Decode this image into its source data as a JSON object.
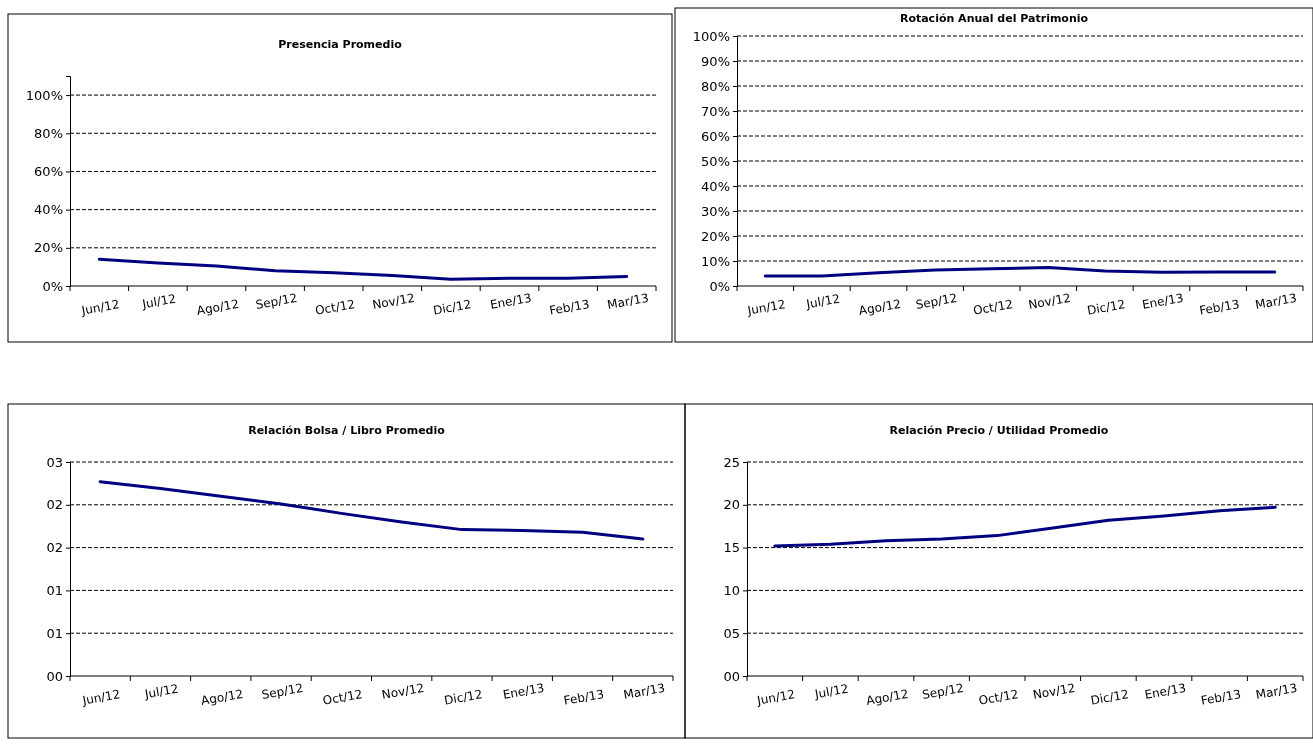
{
  "chart_data": [
    {
      "type": "line",
      "title": "Presencia Promedio",
      "categories": [
        "Jun/12",
        "Jul/12",
        "Ago/12",
        "Sep/12",
        "Oct/12",
        "Nov/12",
        "Dic/12",
        "Ene/13",
        "Feb/13",
        "Mar/13"
      ],
      "values": [
        14,
        12,
        10.5,
        8,
        7,
        5.5,
        3.5,
        4,
        4,
        5
      ],
      "color": "#000080",
      "ylim": [
        0,
        110
      ],
      "yticks": [
        {
          "value": 0,
          "label": "0%"
        },
        {
          "value": 20,
          "label": "20%"
        },
        {
          "value": 40,
          "label": "40%"
        },
        {
          "value": 60,
          "label": "60%"
        },
        {
          "value": 80,
          "label": "80%"
        },
        {
          "value": 100,
          "label": "100%"
        }
      ],
      "grid": "y",
      "line_style": "solid"
    },
    {
      "type": "line",
      "title": "Rotación Anual del Patrimonio",
      "categories": [
        "Jun/12",
        "Jul/12",
        "Ago/12",
        "Sep/12",
        "Oct/12",
        "Nov/12",
        "Dic/12",
        "Ene/13",
        "Feb/13",
        "Mar/13"
      ],
      "values": [
        4,
        4,
        5.3,
        6.4,
        6.9,
        7.4,
        6,
        5.5,
        5.6,
        5.6
      ],
      "color": "#000080",
      "ylim": [
        0,
        100
      ],
      "yticks": [
        {
          "value": 0,
          "label": "0%"
        },
        {
          "value": 10,
          "label": "10%"
        },
        {
          "value": 20,
          "label": "20%"
        },
        {
          "value": 30,
          "label": "30%"
        },
        {
          "value": 40,
          "label": "40%"
        },
        {
          "value": 50,
          "label": "50%"
        },
        {
          "value": 60,
          "label": "60%"
        },
        {
          "value": 70,
          "label": "70%"
        },
        {
          "value": 80,
          "label": "80%"
        },
        {
          "value": 90,
          "label": "90%"
        },
        {
          "value": 100,
          "label": "100%"
        }
      ],
      "grid": "y",
      "line_style": "solid"
    },
    {
      "type": "line",
      "title": "Relación Bolsa / Libro Promedio",
      "categories": [
        "Jun/12",
        "Jul/12",
        "Ago/12",
        "Sep/12",
        "Oct/12",
        "Nov/12",
        "Dic/12",
        "Ene/13",
        "Feb/13",
        "Mar/13"
      ],
      "values": [
        2.27,
        2.19,
        2.1,
        2.01,
        1.9,
        1.8,
        1.71,
        1.7,
        1.68,
        1.6
      ],
      "color": "#000080",
      "ylim": [
        0,
        2.5
      ],
      "yticks": [
        {
          "value": 0,
          "label": "00"
        },
        {
          "value": 0.5,
          "label": "01"
        },
        {
          "value": 1,
          "label": "01"
        },
        {
          "value": 1.5,
          "label": "02"
        },
        {
          "value": 2,
          "label": "02"
        },
        {
          "value": 2.5,
          "label": "03"
        }
      ],
      "grid": "y",
      "line_style": "solid"
    },
    {
      "type": "line",
      "title": "Relación Precio / Utilidad Promedio",
      "categories": [
        "Jun/12",
        "Jul/12",
        "Ago/12",
        "Sep/12",
        "Oct/12",
        "Nov/12",
        "Dic/12",
        "Ene/13",
        "Feb/13",
        "Mar/13"
      ],
      "values": [
        15.2,
        15.4,
        15.8,
        16,
        16.4,
        17.3,
        18.2,
        18.7,
        19.3,
        19.7
      ],
      "color": "#000080",
      "ylim": [
        0,
        25
      ],
      "yticks": [
        {
          "value": 0,
          "label": "00"
        },
        {
          "value": 5,
          "label": "05"
        },
        {
          "value": 10,
          "label": "10"
        },
        {
          "value": 15,
          "label": "15"
        },
        {
          "value": 20,
          "label": "20"
        },
        {
          "value": 25,
          "label": "25"
        }
      ],
      "grid": "y",
      "line_style": "solid"
    }
  ]
}
